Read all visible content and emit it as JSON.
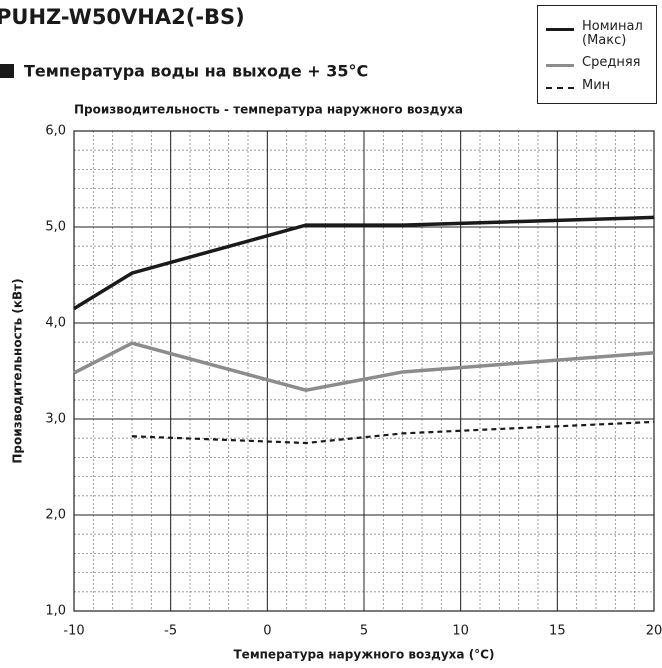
{
  "chart_data": {
    "type": "line",
    "title": "PUHZ-W50VHA2(-BS)",
    "subtitle": "Температура воды на выходе + 35°C",
    "plot_title": "Производительность - температура наружного воздуха",
    "xlabel": "Температура наружного воздуха (°C)",
    "ylabel": "Производительность (кВт)",
    "x": [
      -10,
      -7,
      2,
      7,
      20
    ],
    "series": [
      {
        "name": "Номинал (Макс)",
        "color": "#1a1a1a",
        "dash": "solid",
        "values": [
          4.15,
          4.52,
          5.02,
          5.02,
          5.1
        ]
      },
      {
        "name": "Средняя",
        "color": "#8c8c8c",
        "dash": "solid",
        "values": [
          3.48,
          3.79,
          3.3,
          3.49,
          3.69
        ]
      },
      {
        "name": "Мин",
        "color": "#1a1a1a",
        "dash": "dashed",
        "values": [
          null,
          2.82,
          2.75,
          2.85,
          2.97
        ]
      }
    ],
    "xlim": [
      -10,
      20
    ],
    "xticks": [
      -10,
      -5,
      0,
      5,
      10,
      15,
      20
    ],
    "ylim": [
      1,
      6
    ],
    "yticks": [
      {
        "value": 1,
        "label": "1,0"
      },
      {
        "value": 2,
        "label": "2,0"
      },
      {
        "value": 3,
        "label": "3,0"
      },
      {
        "value": 4,
        "label": "4,0"
      },
      {
        "value": 5,
        "label": "5,0"
      },
      {
        "value": 6,
        "label": "6,0"
      }
    ],
    "grid": true,
    "minor_grid": {
      "x": 1,
      "y": 0.2
    },
    "legend": "top-right"
  }
}
